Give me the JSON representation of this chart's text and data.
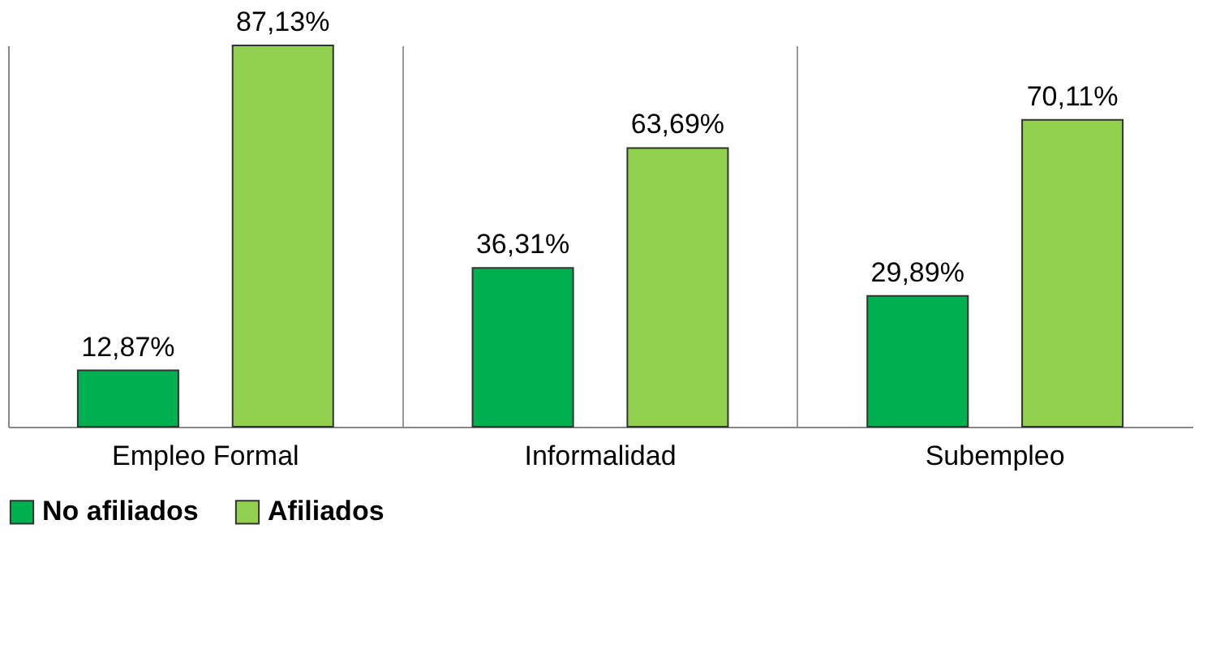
{
  "chart_data": {
    "type": "bar",
    "categories": [
      "Empleo Formal",
      "Informalidad",
      "Subempleo"
    ],
    "series": [
      {
        "name": "No afiliados",
        "color": "#00b050",
        "values": [
          12.87,
          36.31,
          29.89
        ],
        "value_labels": [
          "12,87%",
          "36,31%",
          "29,89%"
        ]
      },
      {
        "name": "Afiliados",
        "color": "#92d050",
        "values": [
          87.13,
          63.69,
          70.11
        ],
        "value_labels": [
          "87,13%",
          "63,69%",
          "70,11%"
        ]
      }
    ],
    "relative": false,
    "grid": "x",
    "legend": "bottom"
  }
}
